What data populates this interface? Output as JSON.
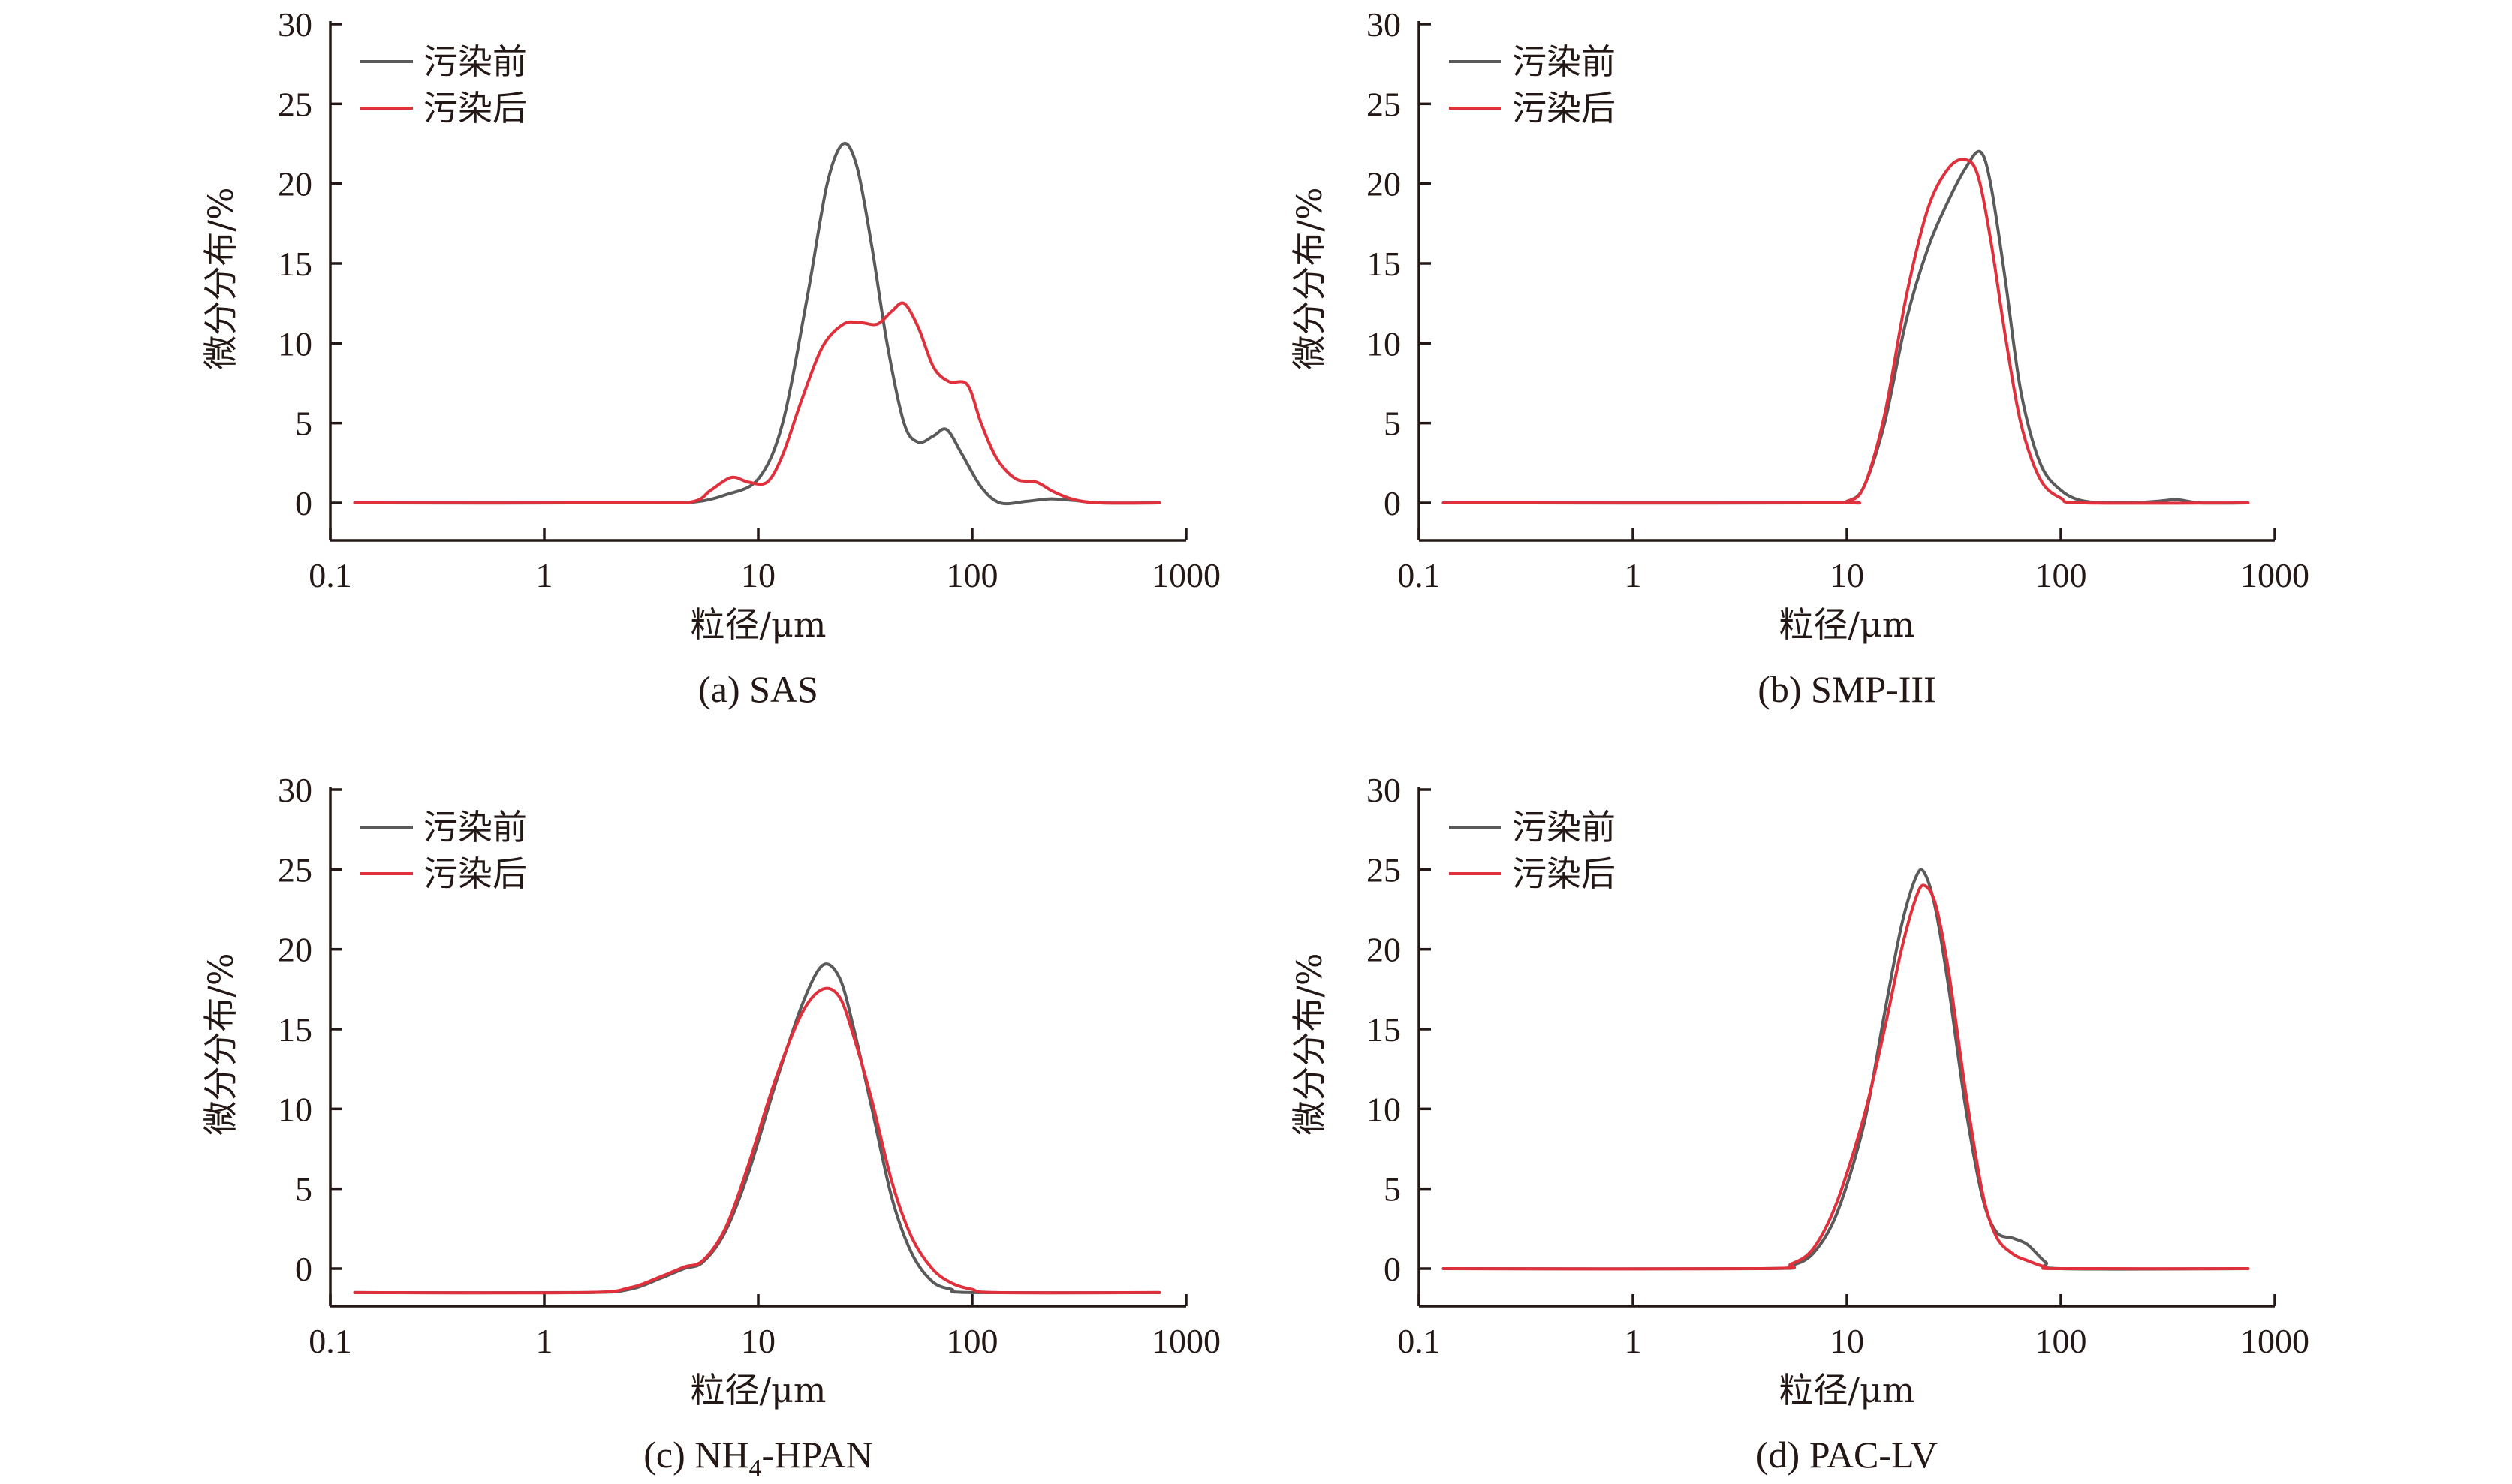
{
  "chart_data": [
    {
      "type": "line",
      "caption": "(a) SAS",
      "xlabel": "粒径/μm",
      "ylabel": "微分分布/%",
      "xscale": "log",
      "xlim": [
        0.1,
        1000
      ],
      "ylim": [
        -2.5,
        30
      ],
      "x_ticks": [
        "0.1",
        "1",
        "10",
        "100",
        "1000"
      ],
      "y_ticks": [
        "0",
        "5",
        "10",
        "15",
        "20",
        "25",
        "30"
      ],
      "legend_position": "top-left",
      "series": [
        {
          "name": "污染前",
          "color": "#5a5a5a",
          "points": [
            [
              0.13,
              0
            ],
            [
              3,
              0
            ],
            [
              5,
              0.05
            ],
            [
              7,
              0.5
            ],
            [
              10,
              1.5
            ],
            [
              13,
              5
            ],
            [
              17,
              13
            ],
            [
              21,
              20
            ],
            [
              25,
              22.5
            ],
            [
              29,
              21
            ],
            [
              34,
              16
            ],
            [
              40,
              10
            ],
            [
              48,
              5
            ],
            [
              56,
              3.8
            ],
            [
              66,
              4.2
            ],
            [
              76,
              4.6
            ],
            [
              90,
              3
            ],
            [
              110,
              1
            ],
            [
              135,
              0
            ],
            [
              180,
              0.1
            ],
            [
              230,
              0.25
            ],
            [
              300,
              0.15
            ],
            [
              400,
              0
            ],
            [
              750,
              0
            ]
          ]
        },
        {
          "name": "污染后",
          "color": "#e0303c",
          "points": [
            [
              0.13,
              0
            ],
            [
              3,
              0
            ],
            [
              5,
              0.1
            ],
            [
              6,
              0.8
            ],
            [
              7.5,
              1.6
            ],
            [
              9,
              1.3
            ],
            [
              11,
              1.3
            ],
            [
              13,
              3
            ],
            [
              16,
              6.5
            ],
            [
              20,
              9.8
            ],
            [
              25,
              11.2
            ],
            [
              30,
              11.3
            ],
            [
              36,
              11.2
            ],
            [
              42,
              12
            ],
            [
              48,
              12.5
            ],
            [
              56,
              11
            ],
            [
              66,
              8.5
            ],
            [
              78,
              7.6
            ],
            [
              95,
              7.4
            ],
            [
              110,
              5
            ],
            [
              130,
              2.8
            ],
            [
              160,
              1.5
            ],
            [
              200,
              1.3
            ],
            [
              240,
              0.7
            ],
            [
              300,
              0.2
            ],
            [
              400,
              0
            ],
            [
              750,
              0
            ]
          ]
        }
      ]
    },
    {
      "type": "line",
      "caption": "(b) SMP-III",
      "xlabel": "粒径/μm",
      "ylabel": "微分分布/%",
      "xscale": "log",
      "xlim": [
        0.1,
        1000
      ],
      "ylim": [
        -2.5,
        30
      ],
      "x_ticks": [
        "0.1",
        "1",
        "10",
        "100",
        "1000"
      ],
      "y_ticks": [
        "0",
        "5",
        "10",
        "15",
        "20",
        "25",
        "30"
      ],
      "legend_position": "top-left",
      "series": [
        {
          "name": "污染前",
          "color": "#5a5a5a",
          "points": [
            [
              0.13,
              0
            ],
            [
              8,
              0
            ],
            [
              10,
              0.1
            ],
            [
              12,
              1
            ],
            [
              15,
              5
            ],
            [
              19,
              11.5
            ],
            [
              24,
              16
            ],
            [
              30,
              19
            ],
            [
              36,
              21
            ],
            [
              42,
              22
            ],
            [
              47,
              20
            ],
            [
              55,
              14
            ],
            [
              65,
              7
            ],
            [
              80,
              2.5
            ],
            [
              100,
              0.8
            ],
            [
              130,
              0.1
            ],
            [
              200,
              0
            ],
            [
              280,
              0.1
            ],
            [
              350,
              0.2
            ],
            [
              450,
              0
            ],
            [
              750,
              0
            ]
          ]
        },
        {
          "name": "污染后",
          "color": "#e0303c",
          "points": [
            [
              0.13,
              0
            ],
            [
              8,
              0
            ],
            [
              10,
              0.1
            ],
            [
              12,
              1
            ],
            [
              15,
              5.5
            ],
            [
              19,
              13
            ],
            [
              24,
              18.5
            ],
            [
              30,
              21
            ],
            [
              36,
              21.5
            ],
            [
              41,
              20.5
            ],
            [
              47,
              16.5
            ],
            [
              55,
              10.5
            ],
            [
              65,
              5
            ],
            [
              80,
              1.5
            ],
            [
              100,
              0.3
            ],
            [
              130,
              0
            ],
            [
              750,
              0
            ]
          ]
        }
      ]
    },
    {
      "type": "line",
      "caption": "(c) NH4-HPAN",
      "xlabel": "粒径/μm",
      "ylabel": "微分分布/%",
      "xscale": "log",
      "xlim": [
        0.1,
        1000
      ],
      "ylim": [
        -2.5,
        30
      ],
      "x_ticks": [
        "0.1",
        "1",
        "10",
        "100",
        "1000"
      ],
      "y_ticks": [
        "0",
        "5",
        "10",
        "15",
        "20",
        "25",
        "30"
      ],
      "legend_position": "top-left",
      "series": [
        {
          "name": "污染前",
          "color": "#5a5a5a",
          "points": [
            [
              0.13,
              -1.5
            ],
            [
              1.5,
              -1.5
            ],
            [
              2.5,
              -1.3
            ],
            [
              3.5,
              -0.6
            ],
            [
              4.5,
              0
            ],
            [
              5.5,
              0.4
            ],
            [
              7,
              2.3
            ],
            [
              9,
              6
            ],
            [
              12,
              11.5
            ],
            [
              16,
              16.5
            ],
            [
              20,
              19
            ],
            [
              24,
              18.2
            ],
            [
              28,
              15
            ],
            [
              34,
              10
            ],
            [
              42,
              4.5
            ],
            [
              52,
              1
            ],
            [
              65,
              -0.8
            ],
            [
              80,
              -1.3
            ],
            [
              100,
              -1.5
            ],
            [
              750,
              -1.5
            ]
          ]
        },
        {
          "name": "污染后",
          "color": "#e0303c",
          "points": [
            [
              0.13,
              -1.5
            ],
            [
              1.5,
              -1.5
            ],
            [
              2.5,
              -1.2
            ],
            [
              3.5,
              -0.5
            ],
            [
              4.5,
              0.1
            ],
            [
              5.5,
              0.5
            ],
            [
              7,
              2.5
            ],
            [
              9,
              6.5
            ],
            [
              12,
              11.8
            ],
            [
              16,
              16
            ],
            [
              20,
              17.5
            ],
            [
              24,
              17
            ],
            [
              28,
              14.5
            ],
            [
              34,
              10.5
            ],
            [
              42,
              5.5
            ],
            [
              52,
              2
            ],
            [
              65,
              0
            ],
            [
              80,
              -0.9
            ],
            [
              100,
              -1.3
            ],
            [
              130,
              -1.5
            ],
            [
              750,
              -1.5
            ]
          ]
        }
      ]
    },
    {
      "type": "line",
      "caption": "(d) PAC-LV",
      "xlabel": "粒径/μm",
      "ylabel": "微分分布/%",
      "xscale": "log",
      "xlim": [
        0.1,
        1000
      ],
      "ylim": [
        -2.5,
        30
      ],
      "x_ticks": [
        "0.1",
        "1",
        "10",
        "100",
        "1000"
      ],
      "y_ticks": [
        "0",
        "5",
        "10",
        "15",
        "20",
        "25",
        "30"
      ],
      "legend_position": "top-left",
      "series": [
        {
          "name": "污染前",
          "color": "#5a5a5a",
          "points": [
            [
              0.13,
              0
            ],
            [
              4,
              0
            ],
            [
              5.5,
              0.2
            ],
            [
              7,
              1
            ],
            [
              9,
              3.5
            ],
            [
              12,
              9
            ],
            [
              15,
              16
            ],
            [
              18,
              21.5
            ],
            [
              21,
              24.5
            ],
            [
              23,
              24.8
            ],
            [
              26,
              22.5
            ],
            [
              30,
              17.5
            ],
            [
              36,
              10
            ],
            [
              43,
              4.5
            ],
            [
              50,
              2.3
            ],
            [
              60,
              1.9
            ],
            [
              70,
              1.5
            ],
            [
              85,
              0.4
            ],
            [
              100,
              0
            ],
            [
              750,
              0
            ]
          ]
        },
        {
          "name": "污染后",
          "color": "#e0303c",
          "points": [
            [
              0.13,
              0
            ],
            [
              4,
              0
            ],
            [
              5.5,
              0.3
            ],
            [
              7,
              1.3
            ],
            [
              9,
              4.2
            ],
            [
              12,
              9.5
            ],
            [
              15,
              15
            ],
            [
              18,
              20
            ],
            [
              21,
              23.2
            ],
            [
              23,
              24
            ],
            [
              26,
              22.8
            ],
            [
              30,
              18.5
            ],
            [
              36,
              11
            ],
            [
              43,
              4.8
            ],
            [
              50,
              2
            ],
            [
              60,
              0.9
            ],
            [
              70,
              0.5
            ],
            [
              85,
              0.1
            ],
            [
              100,
              0
            ],
            [
              750,
              0
            ]
          ]
        }
      ]
    }
  ]
}
